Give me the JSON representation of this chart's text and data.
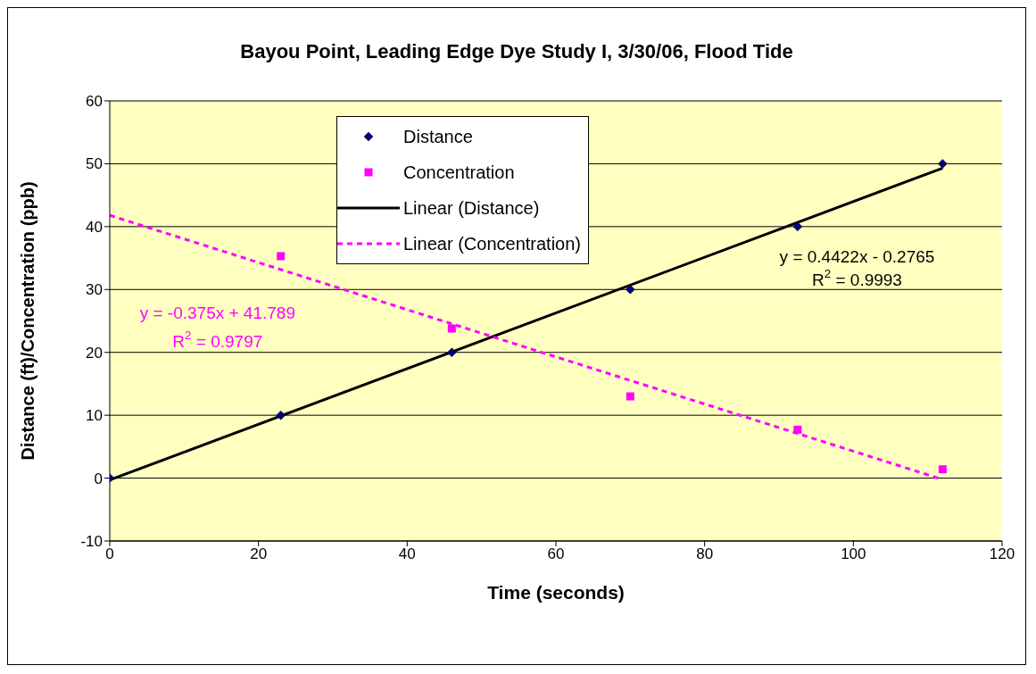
{
  "chart_data": {
    "type": "scatter",
    "title": "Bayou Point, Leading Edge Dye Study I, 3/30/06, Flood Tide",
    "xlabel": "Time (seconds)",
    "ylabel": "Distance (ft)/Concentration (ppb)",
    "xlim": [
      0,
      120
    ],
    "xticks": [
      0,
      20,
      40,
      60,
      80,
      100,
      120
    ],
    "ylim": [
      -10,
      60
    ],
    "yticks": [
      -10,
      0,
      10,
      20,
      30,
      40,
      50,
      60
    ],
    "grid": "y",
    "legend": "top",
    "series": [
      {
        "name": "Distance",
        "marker": "diamond",
        "color": "#000080",
        "x": [
          0,
          23,
          46,
          70,
          92.5,
          112
        ],
        "values": [
          0,
          10,
          20,
          30,
          40,
          50
        ]
      },
      {
        "name": "Concentration",
        "marker": "square",
        "color": "#ff00ff",
        "x": [
          23,
          46,
          70,
          92.5,
          112
        ],
        "values": [
          35.3,
          23.8,
          13,
          7.7,
          1.4
        ]
      },
      {
        "name": "Linear (Distance)",
        "type": "line",
        "marker": "none",
        "line_style": "solid",
        "color": "#000000",
        "x": [
          0,
          112
        ],
        "values": [
          -0.3,
          49.3
        ]
      },
      {
        "name": "Linear (Concentration)",
        "type": "line",
        "marker": "none",
        "line_style": "dashed",
        "color": "#ff00ff",
        "x": [
          0,
          111.4
        ],
        "values": [
          41.8,
          0
        ]
      }
    ],
    "annotations": [
      "y = 0.4422x - 0.2765",
      "R$^{2}$ = 0.9993",
      "y = -0.375x + 41.789",
      "R$^{2}$ = 0.9797"
    ]
  }
}
